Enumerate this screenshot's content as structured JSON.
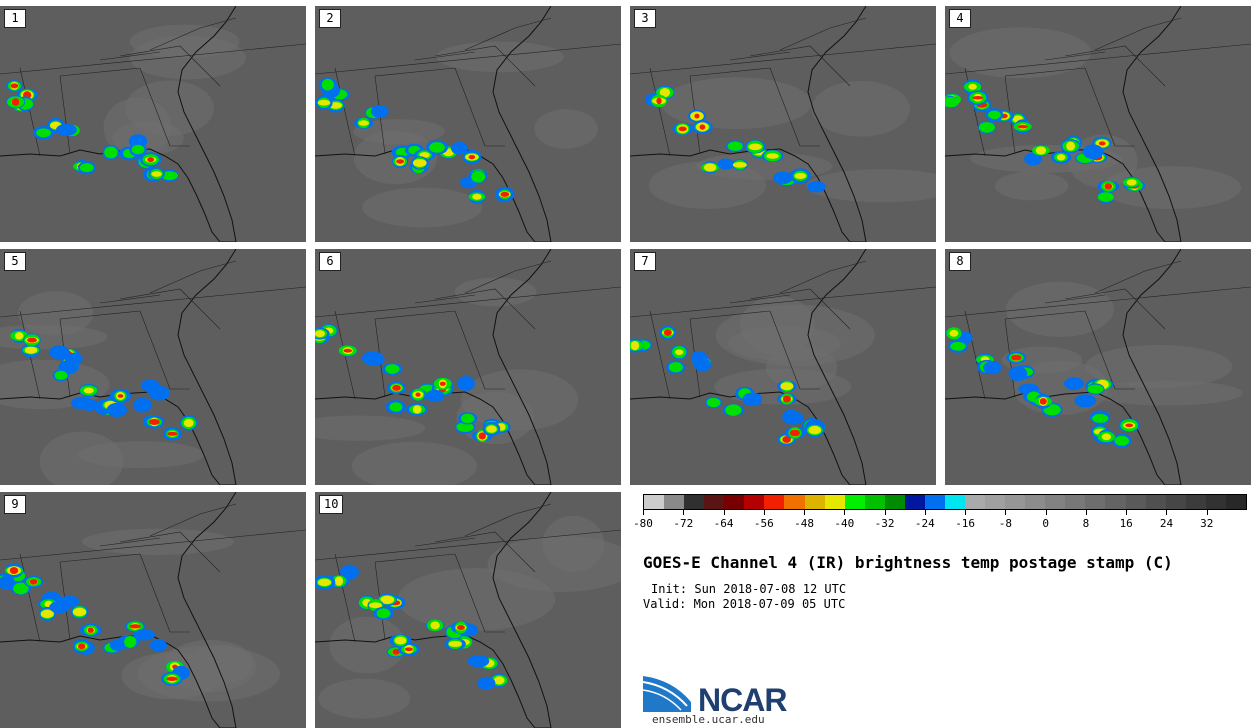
{
  "panels": [
    {
      "label": "1"
    },
    {
      "label": "2"
    },
    {
      "label": "3"
    },
    {
      "label": "4"
    },
    {
      "label": "5"
    },
    {
      "label": "6"
    },
    {
      "label": "7"
    },
    {
      "label": "8"
    },
    {
      "label": "9"
    },
    {
      "label": "10"
    }
  ],
  "colorbar": {
    "colors": [
      "#cccccc",
      "#8a8a8a",
      "#303030",
      "#5a1414",
      "#780000",
      "#b40000",
      "#f02000",
      "#f07000",
      "#dcb400",
      "#e6e600",
      "#00f000",
      "#00c000",
      "#008c00",
      "#0018a0",
      "#0070f0",
      "#00e6f0",
      "#aaaaaa",
      "#a0a0a0",
      "#969696",
      "#8c8c8c",
      "#828282",
      "#787878",
      "#6e6e6e",
      "#646464",
      "#5a5a5a",
      "#505050",
      "#464646",
      "#3c3c3c",
      "#323232",
      "#282828"
    ],
    "min": -80,
    "max": 40,
    "tick_labels": [
      "-80",
      "-72",
      "-64",
      "-56",
      "-48",
      "-40",
      "-32",
      "-24",
      "-16",
      "-8",
      "0",
      "8",
      "16",
      "24",
      "32"
    ]
  },
  "title": "GOES-E Channel 4 (IR) brightness temp postage stamp (C)",
  "init": "Init: Sun 2018-07-08 12 UTC",
  "valid": "Valid: Mon 2018-07-09 05 UTC",
  "logo": {
    "text": "NCAR",
    "url": "ensemble.ucar.edu"
  }
}
